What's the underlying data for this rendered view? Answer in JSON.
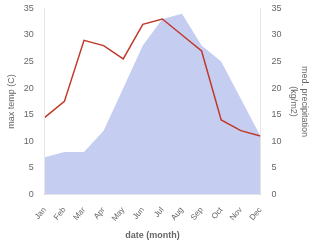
{
  "chart_data": {
    "type": "line",
    "categories": [
      "Jan",
      "Feb",
      "Mar",
      "Apr",
      "May",
      "Jun",
      "Jul",
      "Aug",
      "Sep",
      "Oct",
      "Nov",
      "Dec"
    ],
    "xlabel": "date (month)",
    "ylabel": "max temp (C)",
    "y2label": "med. precipitation\n(kg/m2)",
    "series": [
      {
        "type": "line",
        "color": "#c0392b",
        "values": [
          14.5,
          17.5,
          29,
          28,
          25.5,
          32,
          33,
          30,
          27,
          14,
          12,
          11
        ]
      },
      {
        "type": "area",
        "color": "#c5cef0",
        "axis": "y2",
        "values": [
          7,
          8,
          8,
          12,
          20,
          28,
          33,
          34,
          28,
          25,
          18,
          11
        ]
      }
    ],
    "ylim": [
      0,
      35
    ],
    "yticks": [
      0,
      5,
      10,
      15,
      20,
      25,
      30,
      35
    ],
    "y2lim": [
      0,
      35
    ],
    "y2ticks": [
      0,
      5,
      10,
      15,
      20,
      25,
      30,
      35
    ],
    "grid": false
  }
}
